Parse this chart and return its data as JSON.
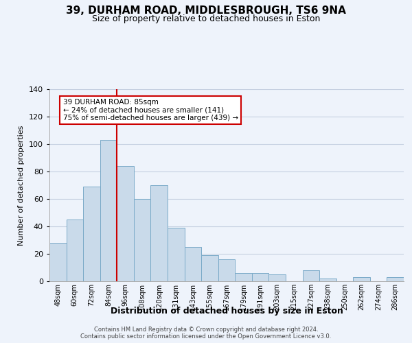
{
  "title": "39, DURHAM ROAD, MIDDLESBROUGH, TS6 9NA",
  "subtitle": "Size of property relative to detached houses in Eston",
  "xlabel": "Distribution of detached houses by size in Eston",
  "ylabel": "Number of detached properties",
  "bar_labels": [
    "48sqm",
    "60sqm",
    "72sqm",
    "84sqm",
    "96sqm",
    "108sqm",
    "120sqm",
    "131sqm",
    "143sqm",
    "155sqm",
    "167sqm",
    "179sqm",
    "191sqm",
    "203sqm",
    "215sqm",
    "227sqm",
    "238sqm",
    "250sqm",
    "262sqm",
    "274sqm",
    "286sqm"
  ],
  "bar_values": [
    28,
    45,
    69,
    103,
    84,
    60,
    70,
    39,
    25,
    19,
    16,
    6,
    6,
    5,
    0,
    8,
    2,
    0,
    3,
    0,
    3
  ],
  "bar_color": "#c9daea",
  "bar_edge_color": "#7aaac8",
  "ylim": [
    0,
    140
  ],
  "yticks": [
    0,
    20,
    40,
    60,
    80,
    100,
    120,
    140
  ],
  "vline_x": 3.5,
  "vline_color": "#cc0000",
  "annotation_title": "39 DURHAM ROAD: 85sqm",
  "annotation_line1": "← 24% of detached houses are smaller (141)",
  "annotation_line2": "75% of semi-detached houses are larger (439) →",
  "box_color": "#cc0000",
  "footer1": "Contains HM Land Registry data © Crown copyright and database right 2024.",
  "footer2": "Contains public sector information licensed under the Open Government Licence v3.0.",
  "bg_color": "#eef3fb",
  "grid_color": "#c5cfe0",
  "title_fontsize": 11,
  "subtitle_fontsize": 9,
  "xlabel_fontsize": 9,
  "ylabel_fontsize": 8
}
